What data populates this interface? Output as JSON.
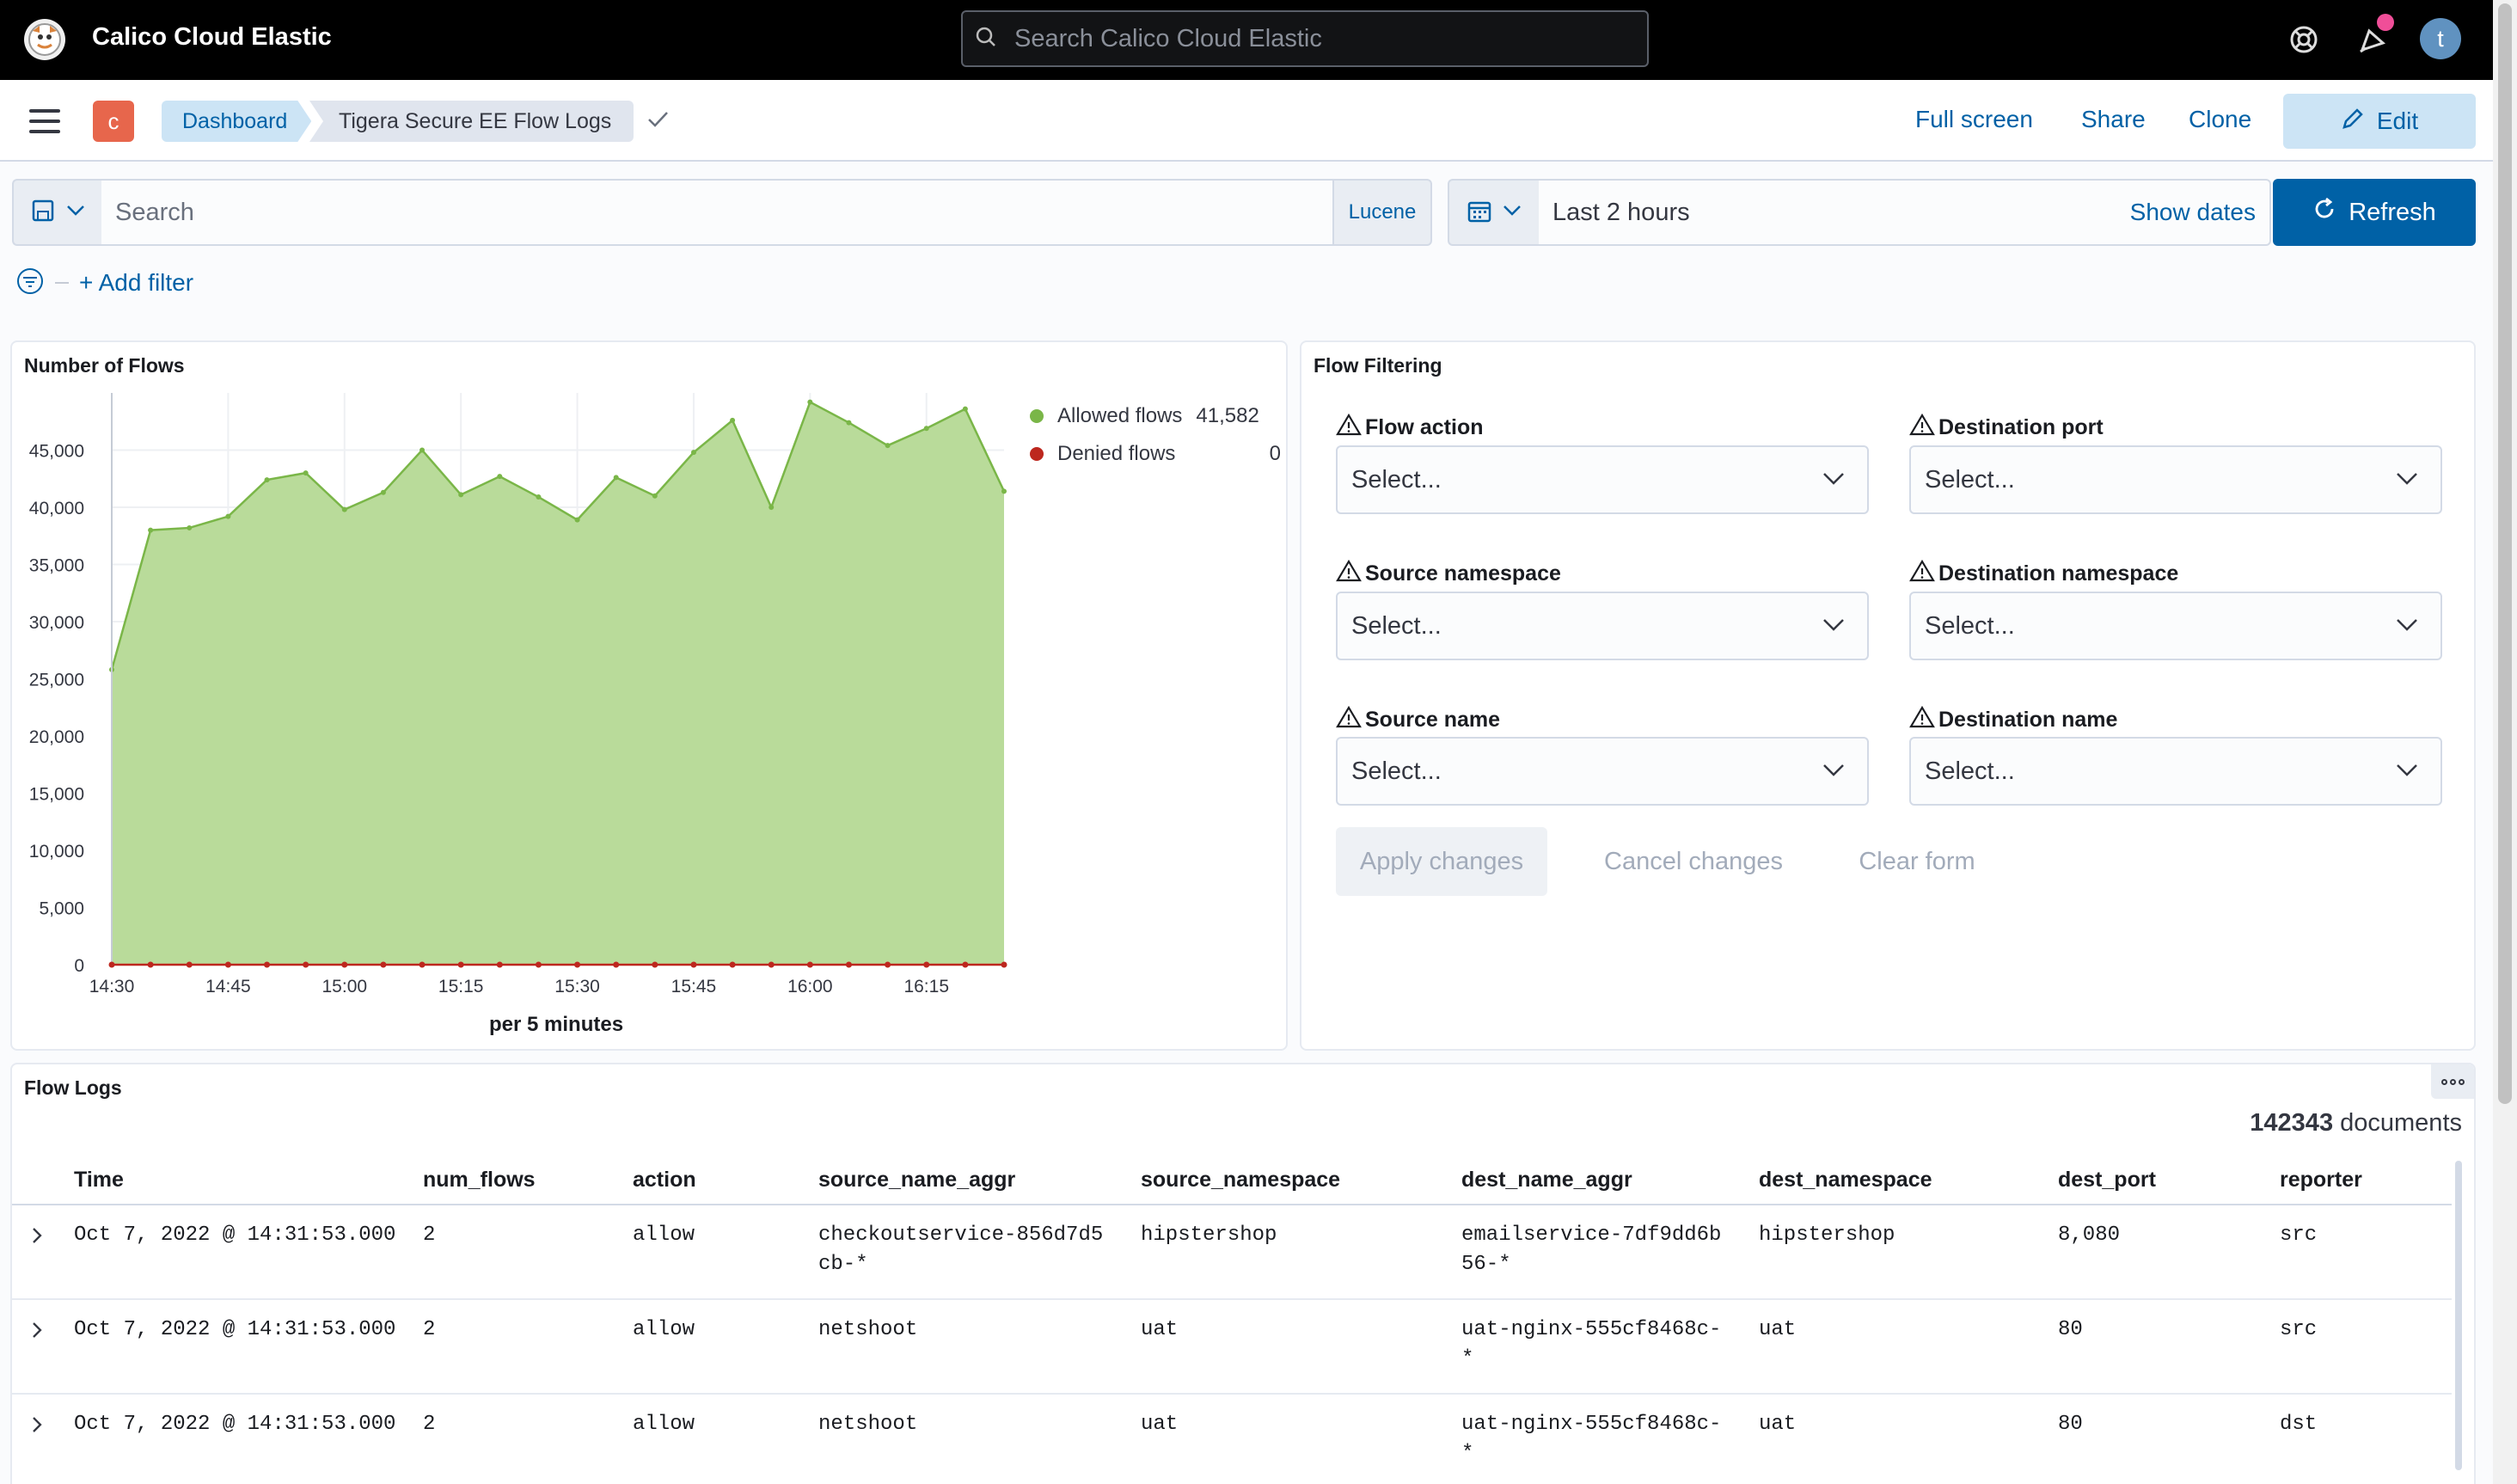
{
  "header": {
    "app_title": "Calico Cloud Elastic",
    "search_placeholder": "Search Calico Cloud Elastic",
    "avatar_initial": "t"
  },
  "nav": {
    "space_initial": "c",
    "breadcrumbs": [
      "Dashboard",
      "Tigera Secure EE Flow Logs"
    ],
    "actions": [
      "Full screen",
      "Share",
      "Clone"
    ],
    "edit_label": "Edit"
  },
  "query": {
    "placeholder": "Search",
    "language": "Lucene",
    "time_range": "Last 2 hours",
    "show_dates": "Show dates",
    "refresh": "Refresh",
    "add_filter": "+ Add filter"
  },
  "flows_panel": {
    "title": "Number of Flows"
  },
  "chart_data": {
    "type": "area",
    "xlabel": "per 5 minutes",
    "x_ticks": [
      "14:30",
      "14:45",
      "15:00",
      "15:15",
      "15:30",
      "15:45",
      "16:00",
      "16:15"
    ],
    "y_ticks": [
      0,
      5000,
      10000,
      15000,
      20000,
      25000,
      30000,
      35000,
      40000,
      45000
    ],
    "ylim": [
      0,
      50000
    ],
    "x": [
      "14:30",
      "14:35",
      "14:40",
      "14:45",
      "14:50",
      "14:55",
      "15:00",
      "15:05",
      "15:10",
      "15:15",
      "15:20",
      "15:25",
      "15:30",
      "15:35",
      "15:40",
      "15:45",
      "15:50",
      "15:55",
      "16:00",
      "16:05",
      "16:10",
      "16:15",
      "16:20",
      "16:25"
    ],
    "series": [
      {
        "name": "Allowed flows",
        "color": "#7ab648",
        "legend_value": "41,582",
        "values": [
          25800,
          38000,
          38200,
          39200,
          42400,
          43000,
          39800,
          41300,
          45000,
          41100,
          42700,
          40900,
          38900,
          42600,
          41000,
          44800,
          47600,
          40000,
          49200,
          47400,
          45400,
          46900,
          48600,
          41400
        ]
      },
      {
        "name": "Denied flows",
        "color": "#bd271e",
        "legend_value": "0",
        "values": [
          0,
          0,
          0,
          0,
          0,
          0,
          0,
          0,
          0,
          0,
          0,
          0,
          0,
          0,
          0,
          0,
          0,
          0,
          0,
          0,
          0,
          0,
          0,
          0
        ]
      }
    ],
    "grid": true,
    "legend": "top-right"
  },
  "filter_panel": {
    "title": "Flow Filtering",
    "fields": [
      {
        "label": "Flow action",
        "value": "Select..."
      },
      {
        "label": "Destination port",
        "value": "Select..."
      },
      {
        "label": "Source namespace",
        "value": "Select..."
      },
      {
        "label": "Destination namespace",
        "value": "Select..."
      },
      {
        "label": "Source name",
        "value": "Select..."
      },
      {
        "label": "Destination name",
        "value": "Select..."
      }
    ],
    "apply": "Apply changes",
    "cancel": "Cancel changes",
    "clear": "Clear form"
  },
  "logs_panel": {
    "title": "Flow Logs",
    "doc_count": "142343",
    "doc_suffix": "documents",
    "columns": [
      "Time",
      "num_flows",
      "action",
      "source_name_aggr",
      "source_namespace",
      "dest_name_aggr",
      "dest_namespace",
      "dest_port",
      "reporter"
    ],
    "rows": [
      [
        "Oct 7, 2022 @ 14:31:53.000",
        "2",
        "allow",
        "checkoutservice-856d7d5\ncb-*",
        "hipstershop",
        "emailservice-7df9dd6b\n56-*",
        "hipstershop",
        "8,080",
        "src"
      ],
      [
        "Oct 7, 2022 @ 14:31:53.000",
        "2",
        "allow",
        "netshoot",
        "uat",
        "uat-nginx-555cf8468c-\n*",
        "uat",
        "80",
        "src"
      ],
      [
        "Oct 7, 2022 @ 14:31:53.000",
        "2",
        "allow",
        "netshoot",
        "uat",
        "uat-nginx-555cf8468c-\n*",
        "uat",
        "80",
        "dst"
      ]
    ]
  }
}
